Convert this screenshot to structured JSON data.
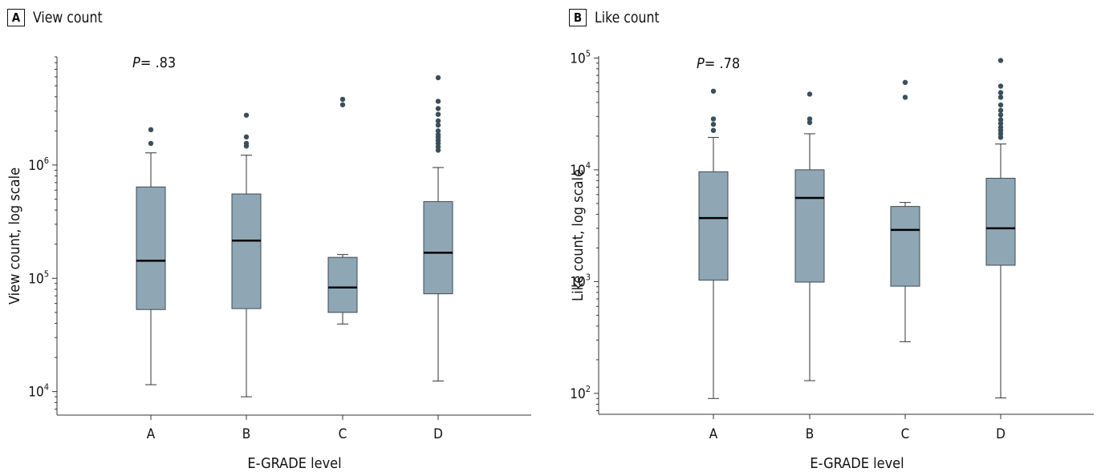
{
  "colors": {
    "box_fill": "#8fa7b5",
    "outlier": "#3a4f5c",
    "axis": "#333333",
    "median": "#000000"
  },
  "chart_data": [
    {
      "type": "box",
      "panel_label": "A",
      "title": "View count",
      "ylabel": "View count, log scale",
      "xlabel": "E-GRADE level",
      "yscale": "log",
      "ylim": [
        6200,
        9000000
      ],
      "yticks": [
        {
          "value": 10000,
          "base": "10",
          "exp": "4"
        },
        {
          "value": 100000,
          "base": "10",
          "exp": "5"
        },
        {
          "value": 1000000,
          "base": "10",
          "exp": "6"
        }
      ],
      "annotation": {
        "prefix": "P",
        "value": "= .83"
      },
      "categories": [
        "A",
        "B",
        "C",
        "D"
      ],
      "boxes": [
        {
          "category": "A",
          "whisker_low": 11500,
          "q1": 53000,
          "median": 143000,
          "q3": 640000,
          "whisker_high": 1280000,
          "outliers": [
            1550000,
            2050000
          ]
        },
        {
          "category": "B",
          "whisker_low": 9000,
          "q1": 54000,
          "median": 215000,
          "q3": 555000,
          "whisker_high": 1220000,
          "outliers": [
            1470000,
            1550000,
            1770000,
            2750000
          ]
        },
        {
          "category": "C",
          "whisker_low": 39500,
          "q1": 50000,
          "median": 83000,
          "q3": 153000,
          "whisker_high": 162000,
          "outliers": [
            3400000,
            3800000
          ]
        },
        {
          "category": "D",
          "whisker_low": 12400,
          "q1": 73000,
          "median": 168000,
          "q3": 475000,
          "whisker_high": 950000,
          "outliers": [
            1350000,
            1450000,
            1550000,
            1650000,
            1750000,
            1850000,
            2000000,
            2250000,
            2450000,
            2800000,
            3150000,
            3650000,
            5900000
          ]
        }
      ]
    },
    {
      "type": "box",
      "panel_label": "B",
      "title": "Like count",
      "ylabel": "Like count, log scale",
      "xlabel": "E-GRADE level",
      "yscale": "log",
      "ylim": [
        65,
        104000
      ],
      "yticks": [
        {
          "value": 100,
          "base": "10",
          "exp": "2"
        },
        {
          "value": 1000,
          "base": "10",
          "exp": "3"
        },
        {
          "value": 10000,
          "base": "10",
          "exp": "4"
        },
        {
          "value": 100000,
          "base": "10",
          "exp": "5"
        }
      ],
      "annotation": {
        "prefix": "P",
        "value": "= .78"
      },
      "categories": [
        "A",
        "B",
        "C",
        "D"
      ],
      "boxes": [
        {
          "category": "A",
          "whisker_low": 90,
          "q1": 1030,
          "median": 3700,
          "q3": 9600,
          "whisker_high": 19500,
          "outliers": [
            22500,
            25500,
            28500,
            50500
          ]
        },
        {
          "category": "B",
          "whisker_low": 130,
          "q1": 990,
          "median": 5600,
          "q3": 10000,
          "whisker_high": 21000,
          "outliers": [
            26500,
            28500,
            47500
          ]
        },
        {
          "category": "C",
          "whisker_low": 290,
          "q1": 910,
          "median": 2900,
          "q3": 4700,
          "whisker_high": 5100,
          "outliers": [
            44500,
            60500
          ]
        },
        {
          "category": "D",
          "whisker_low": 91,
          "q1": 1400,
          "median": 3000,
          "q3": 8400,
          "whisker_high": 17000,
          "outliers": [
            19500,
            21000,
            22500,
            24000,
            26000,
            28000,
            31000,
            34000,
            38000,
            44500,
            49000,
            56000,
            95000
          ]
        }
      ]
    }
  ]
}
